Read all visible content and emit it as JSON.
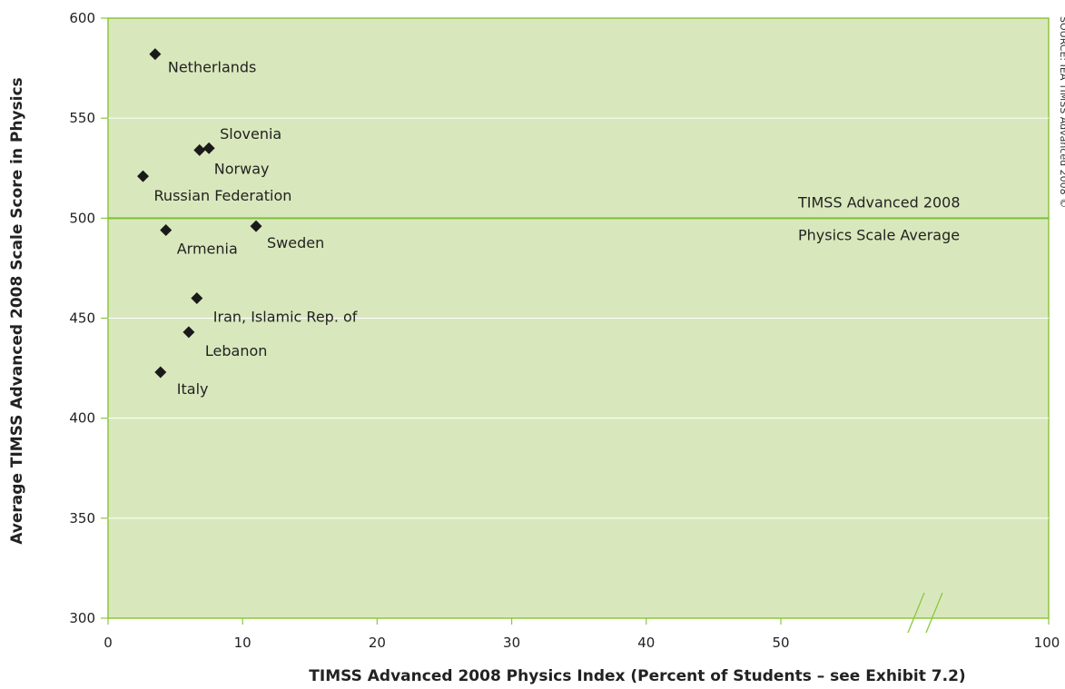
{
  "chart_data": {
    "type": "scatter",
    "title": "",
    "xlabel": "TIMSS Advanced 2008 Physics Index (Percent of Students – see Exhibit 7.2)",
    "ylabel": "Average TIMSS Advanced 2008 Scale Score in Physics",
    "xlim": [
      0,
      100
    ],
    "ylim": [
      300,
      600
    ],
    "x_ticks": [
      {
        "value": 0,
        "label": "0"
      },
      {
        "value": 10,
        "label": "10"
      },
      {
        "value": 20,
        "label": "20"
      },
      {
        "value": 30,
        "label": "30"
      },
      {
        "value": 40,
        "label": "40"
      },
      {
        "value": 50,
        "label": "50"
      },
      {
        "value": 100,
        "label": "100"
      }
    ],
    "x_axis_break": true,
    "y_ticks": [
      300,
      350,
      400,
      450,
      500,
      550,
      600
    ],
    "grid": "horizontal",
    "points": [
      {
        "label": "Netherlands",
        "x": 3.5,
        "y": 582
      },
      {
        "label": "Slovenia",
        "x": 7.5,
        "y": 535
      },
      {
        "label": "Norway",
        "x": 6.8,
        "y": 534
      },
      {
        "label": "Russian Federation",
        "x": 2.6,
        "y": 521
      },
      {
        "label": "Armenia",
        "x": 4.3,
        "y": 494
      },
      {
        "label": "Sweden",
        "x": 11.0,
        "y": 496
      },
      {
        "label": "Iran, Islamic Rep. of",
        "x": 6.6,
        "y": 460
      },
      {
        "label": "Lebanon",
        "x": 6.0,
        "y": 443
      },
      {
        "label": "Italy",
        "x": 3.9,
        "y": 423
      }
    ],
    "reference_line": {
      "y": 500,
      "label_line1": "TIMSS Advanced 2008",
      "label_line2": "Physics Scale Average"
    },
    "source_note": "SOURCE: IEA TIMSS Advanced 2008 ©",
    "colors": {
      "plot_background": "#d9e8bc",
      "plot_border": "#8dc63f",
      "reference_line": "#7cbf3c",
      "gridline": "#ffffff",
      "marker": "#1a1a1a"
    }
  }
}
